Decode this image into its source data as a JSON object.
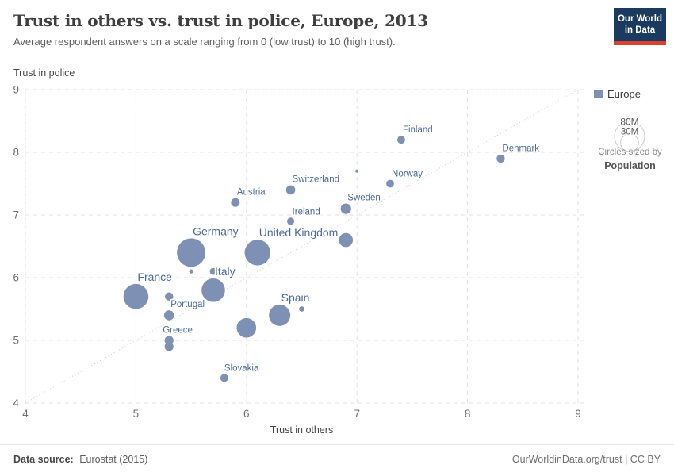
{
  "header": {
    "title": "Trust in others vs. trust in police, Europe, 2013",
    "subtitle": "Average respondent answers on a scale ranging from 0 (low trust) to 10 (high trust).",
    "logo": {
      "line1": "Our World",
      "line2": "in Data"
    }
  },
  "legend": {
    "series_label": "Europe",
    "size_labels": [
      "80M",
      "30M"
    ],
    "size_caption_line1": "Circles sized by",
    "size_caption_line2": "Population"
  },
  "footer": {
    "source_label": "Data source:",
    "source_value": "Eurostat (2015)",
    "link_text": "OurWorldinData.org/trust | CC BY"
  },
  "colors": {
    "bubble": "#7e91b5",
    "label": "#4d6a9c",
    "grid": "#e0e0e0",
    "diagonal": "#cbcbcb",
    "tick_text": "#6f6f6f",
    "axis_title": "#454545",
    "logo_navy": "#1a3a5f",
    "logo_red": "#dc3f2e"
  },
  "chart_data": {
    "type": "scatter",
    "title": "Trust in others vs. trust in police, Europe, 2013",
    "xlabel": "Trust in others",
    "ylabel": "Trust in police",
    "xlim": [
      4,
      9
    ],
    "ylim": [
      4,
      9
    ],
    "x_ticks": [
      4,
      5,
      6,
      7,
      8,
      9
    ],
    "y_ticks": [
      4,
      5,
      6,
      7,
      8,
      9
    ],
    "grid": "dashed",
    "diagonal_reference_line": true,
    "legend_position": "right",
    "series_name": "Europe",
    "size_by": "Population",
    "points": [
      {
        "label": "Germany",
        "x": 5.5,
        "y": 6.4,
        "r": 18.0,
        "big": true
      },
      {
        "label": "United Kingdom",
        "x": 6.1,
        "y": 6.4,
        "r": 16.2,
        "big": true
      },
      {
        "label": "France",
        "x": 5.0,
        "y": 5.7,
        "r": 15.8,
        "big": true
      },
      {
        "label": "Italy",
        "x": 5.7,
        "y": 5.8,
        "r": 14.8,
        "big": true
      },
      {
        "label": "Spain",
        "x": 6.3,
        "y": 5.4,
        "r": 13.5,
        "big": true
      },
      {
        "label": null,
        "x": 6.0,
        "y": 5.2,
        "r": 12.3
      },
      {
        "label": null,
        "x": 6.9,
        "y": 6.6,
        "r": 8.8
      },
      {
        "label": "Sweden",
        "x": 6.9,
        "y": 7.1,
        "r": 6.6
      },
      {
        "label": "Portugal",
        "x": 5.3,
        "y": 5.4,
        "r": 6.3
      },
      {
        "label": "Switzerland",
        "x": 6.4,
        "y": 7.4,
        "r": 5.8
      },
      {
        "label": "Greece",
        "x": 5.3,
        "y": 5.0,
        "r": 5.6,
        "ldx": -10
      },
      {
        "label": null,
        "x": 5.3,
        "y": 4.9,
        "r": 5.6
      },
      {
        "label": "Austria",
        "x": 5.9,
        "y": 7.2,
        "r": 5.5
      },
      {
        "label": "Denmark",
        "x": 8.3,
        "y": 7.9,
        "r": 5.2
      },
      {
        "label": null,
        "x": 5.3,
        "y": 5.7,
        "r": 5.2
      },
      {
        "label": "Finland",
        "x": 7.4,
        "y": 8.2,
        "r": 5.0
      },
      {
        "label": "Slovakia",
        "x": 5.8,
        "y": 4.4,
        "r": 5.0,
        "ldx": -2
      },
      {
        "label": "Norway",
        "x": 7.3,
        "y": 7.5,
        "r": 4.9
      },
      {
        "label": "Ireland",
        "x": 6.4,
        "y": 6.9,
        "r": 4.6
      },
      {
        "label": null,
        "x": 5.7,
        "y": 6.1,
        "r": 4.4
      },
      {
        "label": null,
        "x": 6.5,
        "y": 5.5,
        "r": 3.4
      },
      {
        "label": null,
        "x": 5.5,
        "y": 6.1,
        "r": 2.6
      },
      {
        "label": null,
        "x": 7.0,
        "y": 7.7,
        "r": 2.0
      }
    ]
  }
}
